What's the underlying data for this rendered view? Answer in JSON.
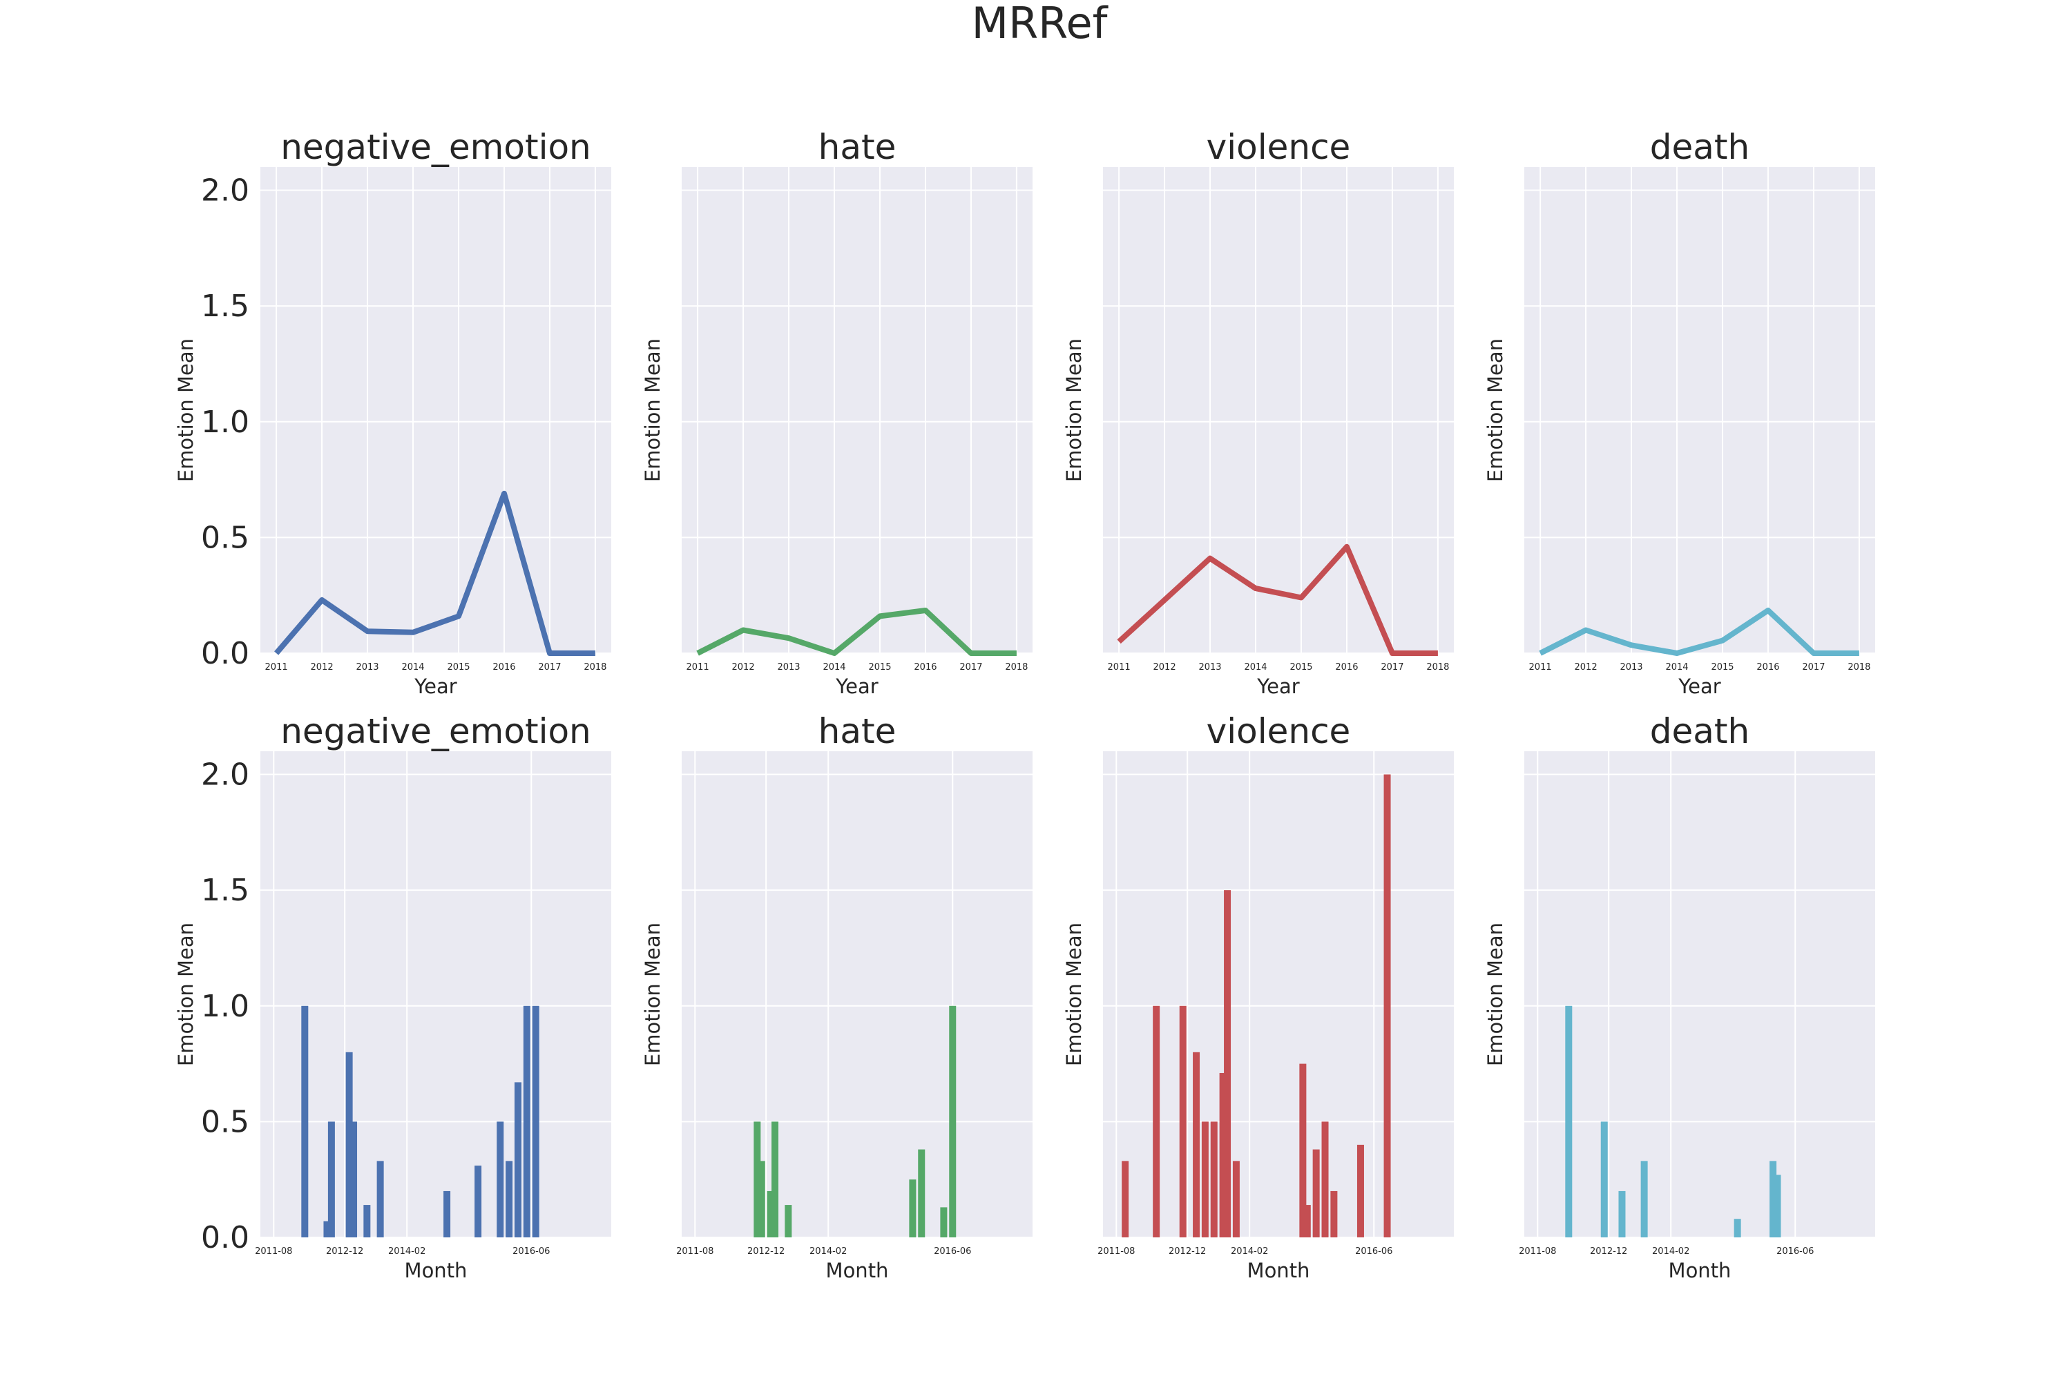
{
  "figure": {
    "title": "MRRef"
  },
  "colors": {
    "negative_emotion": "#4c72b0",
    "hate": "#55a868",
    "violence": "#c44e52",
    "death": "#64b5cd",
    "panel_bg": "#eaeaf2",
    "grid": "#ffffff",
    "text": "#262626"
  },
  "chart_data": [
    {
      "type": "line",
      "series_key": "negative_emotion",
      "title": "negative_emotion",
      "xlabel": "Year",
      "ylabel": "Emotion Mean",
      "ylim": [
        0,
        2.1
      ],
      "yticks": [
        "0.0",
        "0.5",
        "1.0",
        "1.5",
        "2.0"
      ],
      "show_ytick_labels": true,
      "x": [
        "2011",
        "2012",
        "2013",
        "2014",
        "2015",
        "2016",
        "2017",
        "2018"
      ],
      "values": [
        0.0,
        0.23,
        0.095,
        0.09,
        0.16,
        0.69,
        0.0,
        0.0
      ]
    },
    {
      "type": "line",
      "series_key": "hate",
      "title": "hate",
      "xlabel": "Year",
      "ylabel": "Emotion Mean",
      "ylim": [
        0,
        2.1
      ],
      "yticks": [
        "0.0",
        "0.5",
        "1.0",
        "1.5",
        "2.0"
      ],
      "show_ytick_labels": false,
      "x": [
        "2011",
        "2012",
        "2013",
        "2014",
        "2015",
        "2016",
        "2017",
        "2018"
      ],
      "values": [
        0.0,
        0.1,
        0.065,
        0.0,
        0.16,
        0.185,
        0.0,
        0.0
      ]
    },
    {
      "type": "line",
      "series_key": "violence",
      "title": "violence",
      "xlabel": "Year",
      "ylabel": "Emotion Mean",
      "ylim": [
        0,
        2.1
      ],
      "yticks": [
        "0.0",
        "0.5",
        "1.0",
        "1.5",
        "2.0"
      ],
      "show_ytick_labels": false,
      "x": [
        "2011",
        "2012",
        "2013",
        "2014",
        "2015",
        "2016",
        "2017",
        "2018"
      ],
      "values": [
        0.05,
        0.23,
        0.41,
        0.28,
        0.24,
        0.46,
        0.0,
        0.0
      ]
    },
    {
      "type": "line",
      "series_key": "death",
      "title": "death",
      "xlabel": "Year",
      "ylabel": "Emotion Mean",
      "ylim": [
        0,
        2.1
      ],
      "yticks": [
        "0.0",
        "0.5",
        "1.0",
        "1.5",
        "2.0"
      ],
      "show_ytick_labels": false,
      "x": [
        "2011",
        "2012",
        "2013",
        "2014",
        "2015",
        "2016",
        "2017",
        "2018"
      ],
      "values": [
        0.0,
        0.1,
        0.035,
        0.0,
        0.055,
        0.185,
        0.0,
        0.0
      ]
    },
    {
      "type": "bar",
      "series_key": "negative_emotion",
      "title": "negative_emotion",
      "xlabel": "Month",
      "ylabel": "Emotion Mean",
      "ylim": [
        0,
        2.1
      ],
      "yticks": [
        "0.0",
        "0.5",
        "1.0",
        "1.5",
        "2.0"
      ],
      "show_ytick_labels": true,
      "xlim": [
        "2011-05",
        "2017-12"
      ],
      "xticks": [
        "2011-08",
        "2012-12",
        "2014-02",
        "2016-06"
      ],
      "bars": [
        {
          "month": "2012-03",
          "value": 1.0
        },
        {
          "month": "2012-08",
          "value": 0.07
        },
        {
          "month": "2012-09",
          "value": 0.5
        },
        {
          "month": "2013-01",
          "value": 0.8
        },
        {
          "month": "2013-02",
          "value": 0.5
        },
        {
          "month": "2013-05",
          "value": 0.14
        },
        {
          "month": "2013-08",
          "value": 0.33
        },
        {
          "month": "2014-11",
          "value": 0.2
        },
        {
          "month": "2015-06",
          "value": 0.31
        },
        {
          "month": "2015-11",
          "value": 0.5
        },
        {
          "month": "2016-01",
          "value": 0.33
        },
        {
          "month": "2016-03",
          "value": 0.67
        },
        {
          "month": "2016-05",
          "value": 1.0
        },
        {
          "month": "2016-07",
          "value": 1.0
        }
      ]
    },
    {
      "type": "bar",
      "series_key": "hate",
      "title": "hate",
      "xlabel": "Month",
      "ylabel": "Emotion Mean",
      "ylim": [
        0,
        2.1
      ],
      "yticks": [
        "0.0",
        "0.5",
        "1.0",
        "1.5",
        "2.0"
      ],
      "show_ytick_labels": false,
      "xlim": [
        "2011-05",
        "2017-12"
      ],
      "xticks": [
        "2011-08",
        "2012-12",
        "2014-02",
        "2016-06"
      ],
      "bars": [
        {
          "month": "2012-10",
          "value": 0.5
        },
        {
          "month": "2012-11",
          "value": 0.33
        },
        {
          "month": "2013-01",
          "value": 0.2
        },
        {
          "month": "2013-02",
          "value": 0.5
        },
        {
          "month": "2013-05",
          "value": 0.14
        },
        {
          "month": "2015-09",
          "value": 0.25
        },
        {
          "month": "2015-11",
          "value": 0.38
        },
        {
          "month": "2016-04",
          "value": 0.13
        },
        {
          "month": "2016-06",
          "value": 1.0
        }
      ]
    },
    {
      "type": "bar",
      "series_key": "violence",
      "title": "violence",
      "xlabel": "Month",
      "ylabel": "Emotion Mean",
      "ylim": [
        0,
        2.1
      ],
      "yticks": [
        "0.0",
        "0.5",
        "1.0",
        "1.5",
        "2.0"
      ],
      "show_ytick_labels": false,
      "xlim": [
        "2011-05",
        "2017-12"
      ],
      "xticks": [
        "2011-08",
        "2012-12",
        "2014-02",
        "2016-06"
      ],
      "bars": [
        {
          "month": "2011-10",
          "value": 0.33
        },
        {
          "month": "2012-05",
          "value": 1.0
        },
        {
          "month": "2012-11",
          "value": 1.0
        },
        {
          "month": "2013-02",
          "value": 0.8
        },
        {
          "month": "2013-04",
          "value": 0.5
        },
        {
          "month": "2013-06",
          "value": 0.5
        },
        {
          "month": "2013-08",
          "value": 0.71
        },
        {
          "month": "2013-09",
          "value": 1.5
        },
        {
          "month": "2013-11",
          "value": 0.33
        },
        {
          "month": "2015-02",
          "value": 0.75
        },
        {
          "month": "2015-03",
          "value": 0.14
        },
        {
          "month": "2015-05",
          "value": 0.38
        },
        {
          "month": "2015-07",
          "value": 0.5
        },
        {
          "month": "2015-09",
          "value": 0.2
        },
        {
          "month": "2016-03",
          "value": 0.4
        },
        {
          "month": "2016-09",
          "value": 2.0
        }
      ]
    },
    {
      "type": "bar",
      "series_key": "death",
      "title": "death",
      "xlabel": "Month",
      "ylabel": "Emotion Mean",
      "ylim": [
        0,
        2.1
      ],
      "yticks": [
        "0.0",
        "0.5",
        "1.0",
        "1.5",
        "2.0"
      ],
      "show_ytick_labels": false,
      "xlim": [
        "2011-05",
        "2017-12"
      ],
      "xticks": [
        "2011-08",
        "2012-12",
        "2014-02",
        "2016-06"
      ],
      "bars": [
        {
          "month": "2012-03",
          "value": 1.0
        },
        {
          "month": "2012-11",
          "value": 0.5
        },
        {
          "month": "2013-03",
          "value": 0.2
        },
        {
          "month": "2013-08",
          "value": 0.33
        },
        {
          "month": "2015-05",
          "value": 0.08
        },
        {
          "month": "2016-01",
          "value": 0.33
        },
        {
          "month": "2016-02",
          "value": 0.27
        }
      ]
    }
  ]
}
